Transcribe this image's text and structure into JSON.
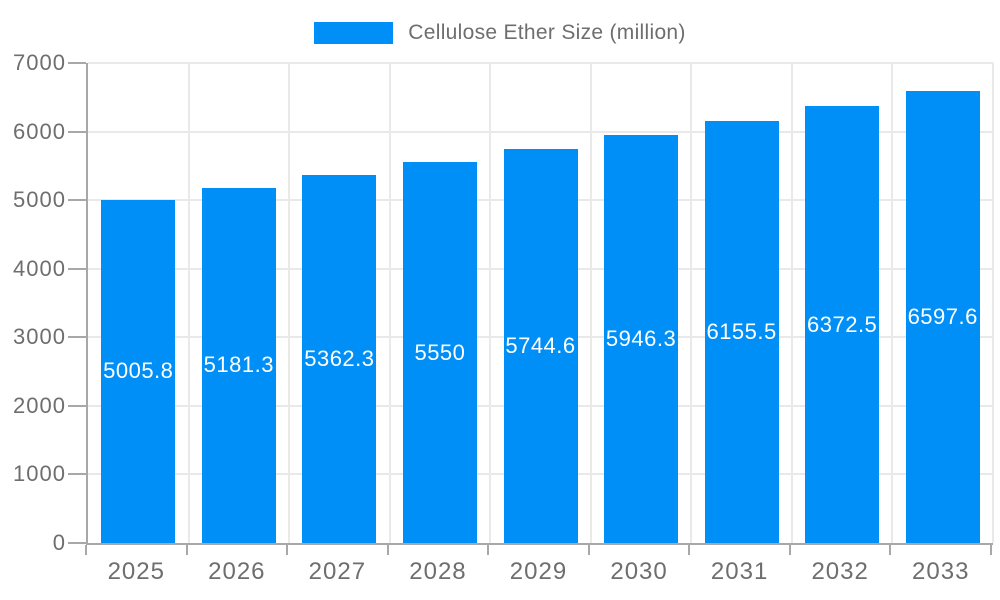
{
  "legend": {
    "label": "Cellulose Ether Size (million)"
  },
  "chart_data": {
    "type": "bar",
    "title": "Cellulose Ether Size (million)",
    "categories": [
      "2025",
      "2026",
      "2027",
      "2028",
      "2029",
      "2030",
      "2031",
      "2032",
      "2033"
    ],
    "values": [
      5005.8,
      5181.3,
      5362.3,
      5550,
      5744.6,
      5946.3,
      6155.5,
      6372.5,
      6597.6
    ],
    "value_labels": [
      "5005.8",
      "5181.3",
      "5362.3",
      "5550",
      "5744.6",
      "5946.3",
      "6155.5",
      "6372.5",
      "6597.6"
    ],
    "xlabel": "",
    "ylabel": "",
    "ylim": [
      0,
      7000
    ],
    "y_ticks": [
      0,
      1000,
      2000,
      3000,
      4000,
      5000,
      6000,
      7000
    ],
    "grid": true,
    "legend_position": "top-center",
    "value_label_position": "inside-center"
  },
  "colors": {
    "bar": "#008ff7",
    "value_label": "#ffffff",
    "axis_line": "#a8a8a8",
    "gridline": "#e9e9e9",
    "axis_text": "#6e6e6e",
    "legend_text": "#6e6e6e",
    "background": "#ffffff"
  }
}
